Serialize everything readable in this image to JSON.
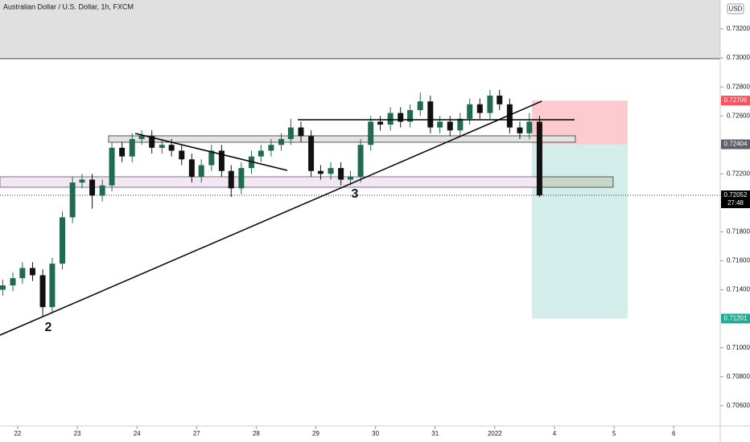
{
  "chart_data": {
    "type": "candlestick",
    "title": "Australian Dollar / U.S. Dollar, 1h, FXCM",
    "currency": "USD",
    "x": [
      -0.25,
      -0.08,
      0.08,
      0.25,
      0.42,
      0.58,
      0.75,
      0.92,
      1.08,
      1.25,
      1.42,
      1.58,
      1.75,
      1.92,
      2.08,
      2.25,
      2.42,
      2.58,
      2.75,
      2.92,
      3.08,
      3.25,
      3.42,
      3.58,
      3.75,
      3.92,
      4.08,
      4.25,
      4.42,
      4.58,
      4.75,
      4.92,
      5.08,
      5.25,
      5.42,
      5.58,
      5.75,
      5.92,
      6.08,
      6.25,
      6.42,
      6.58,
      6.75,
      6.92,
      7.08,
      7.25,
      7.42,
      7.58,
      7.75,
      7.92,
      8.08,
      8.25,
      8.42,
      8.58,
      8.75
    ],
    "open": [
      0.714,
      0.7143,
      0.7148,
      0.7155,
      0.715,
      0.7128,
      0.7158,
      0.719,
      0.7214,
      0.7216,
      0.7205,
      0.7212,
      0.7238,
      0.7232,
      0.7244,
      0.7246,
      0.7238,
      0.724,
      0.7236,
      0.723,
      0.7218,
      0.7226,
      0.7236,
      0.7222,
      0.721,
      0.7224,
      0.7232,
      0.7236,
      0.724,
      0.7244,
      0.7252,
      0.7246,
      0.7222,
      0.722,
      0.7224,
      0.7216,
      0.7218,
      0.724,
      0.7256,
      0.7254,
      0.7262,
      0.7256,
      0.7264,
      0.727,
      0.7252,
      0.7256,
      0.725,
      0.7258,
      0.7268,
      0.7262,
      0.7274,
      0.7268,
      0.7252,
      0.7248,
      0.7256
    ],
    "high": [
      0.7147,
      0.7152,
      0.7159,
      0.7159,
      0.7154,
      0.7162,
      0.7194,
      0.7218,
      0.722,
      0.722,
      0.7216,
      0.7242,
      0.7242,
      0.7248,
      0.725,
      0.725,
      0.7244,
      0.7244,
      0.724,
      0.7234,
      0.723,
      0.724,
      0.724,
      0.7226,
      0.7228,
      0.7236,
      0.724,
      0.7244,
      0.7248,
      0.7258,
      0.7256,
      0.725,
      0.7226,
      0.7228,
      0.7228,
      0.7222,
      0.7244,
      0.726,
      0.726,
      0.7266,
      0.7266,
      0.7268,
      0.7276,
      0.7274,
      0.726,
      0.726,
      0.7262,
      0.7272,
      0.7272,
      0.7278,
      0.7278,
      0.7272,
      0.7256,
      0.7262,
      0.726
    ],
    "low": [
      0.7136,
      0.7139,
      0.7144,
      0.7146,
      0.7122,
      0.7124,
      0.7154,
      0.7186,
      0.721,
      0.7196,
      0.7201,
      0.7208,
      0.7228,
      0.7228,
      0.724,
      0.7234,
      0.7234,
      0.7232,
      0.7226,
      0.7214,
      0.7214,
      0.7222,
      0.7218,
      0.7204,
      0.7206,
      0.722,
      0.7228,
      0.7232,
      0.7236,
      0.724,
      0.7242,
      0.7218,
      0.7216,
      0.7216,
      0.7212,
      0.7212,
      0.7214,
      0.7236,
      0.725,
      0.725,
      0.7252,
      0.7252,
      0.726,
      0.7248,
      0.7248,
      0.7246,
      0.7246,
      0.7254,
      0.7258,
      0.7258,
      0.7264,
      0.7248,
      0.7244,
      0.7244,
      0.7204
    ],
    "close": [
      0.7143,
      0.7148,
      0.7155,
      0.715,
      0.7128,
      0.7158,
      0.719,
      0.7214,
      0.7216,
      0.7205,
      0.7212,
      0.7238,
      0.7232,
      0.7244,
      0.7246,
      0.7238,
      0.724,
      0.7236,
      0.723,
      0.7218,
      0.7226,
      0.7236,
      0.7222,
      0.721,
      0.7224,
      0.7232,
      0.7236,
      0.724,
      0.7244,
      0.7252,
      0.7246,
      0.7222,
      0.722,
      0.7224,
      0.7216,
      0.7218,
      0.724,
      0.7256,
      0.7254,
      0.7262,
      0.7256,
      0.7264,
      0.727,
      0.7252,
      0.7256,
      0.725,
      0.7258,
      0.7268,
      0.7262,
      0.7274,
      0.7268,
      0.7252,
      0.7248,
      0.7256,
      0.72052
    ],
    "up_color": "#1e6b52",
    "down_color": "#111111",
    "xlim": [
      -0.296,
      11.78
    ],
    "xticks": [
      {
        "value": 0,
        "label": "22"
      },
      {
        "value": 1,
        "label": "23"
      },
      {
        "value": 2,
        "label": "24"
      },
      {
        "value": 3,
        "label": "27"
      },
      {
        "value": 4,
        "label": "28"
      },
      {
        "value": 5,
        "label": "29"
      },
      {
        "value": 6,
        "label": "30"
      },
      {
        "value": 7,
        "label": "31"
      },
      {
        "value": 8,
        "label": "2022"
      },
      {
        "value": 9,
        "label": "4"
      },
      {
        "value": 10,
        "label": "5"
      },
      {
        "value": 11,
        "label": "6"
      }
    ],
    "ylim": [
      0.7046,
      0.734
    ],
    "yticks": [
      {
        "value": 0.732,
        "label": "0.73200"
      },
      {
        "value": 0.73,
        "label": "0.73000"
      },
      {
        "value": 0.728,
        "label": "0.72800"
      },
      {
        "value": 0.726,
        "label": "0.72600"
      },
      {
        "value": 0.722,
        "label": "0.72200"
      },
      {
        "value": 0.718,
        "label": "0.71800"
      },
      {
        "value": 0.716,
        "label": "0.71600"
      },
      {
        "value": 0.714,
        "label": "0.71400"
      },
      {
        "value": 0.71,
        "label": "0.71000"
      },
      {
        "value": 0.708,
        "label": "0.70800"
      },
      {
        "value": 0.706,
        "label": "0.70600"
      }
    ],
    "position": {
      "stop": {
        "value": 0.72706,
        "label": "0.72706",
        "color": "#f7525f"
      },
      "entry": {
        "value": 0.72404,
        "label": "0.72404",
        "color": "#5d606b"
      },
      "target": {
        "value": 0.71201,
        "label": "0.71201",
        "color": "#22ab94"
      }
    },
    "last_price": {
      "value": 0.72052,
      "label": "0.72052",
      "countdown": "27:48"
    },
    "annotations": [
      "2",
      "3"
    ]
  }
}
